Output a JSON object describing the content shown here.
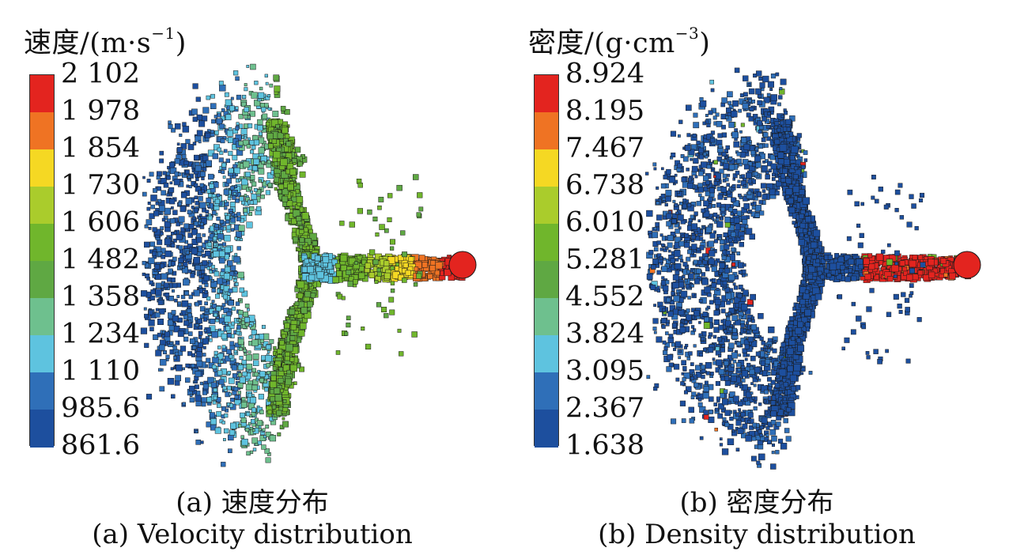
{
  "chart_data": [
    {
      "type": "heatmap",
      "title": "速度/(m·s",
      "title_sup": "−1",
      "title_close": ")",
      "caption_cn": "(a) 速度分布",
      "caption_en": "(a) Velocity distribution",
      "legend_placement": "left",
      "levels": [
        "2 102",
        "1 978",
        "1 854",
        "1 730",
        "1 606",
        "1 482",
        "1 358",
        "1 234",
        "1 110",
        "985.6",
        "861.6"
      ],
      "level_values": [
        2102,
        1978,
        1854,
        1730,
        1606,
        1482,
        1358,
        1234,
        1110,
        985.6,
        861.6
      ],
      "colors": [
        "#e3241f",
        "#ef7323",
        "#f5d823",
        "#aacc2c",
        "#70b62c",
        "#5fa843",
        "#6ec08e",
        "#5ec3df",
        "#2f6fb8",
        "#1d4f9e"
      ]
    },
    {
      "type": "heatmap",
      "title": "密度/(g·cm",
      "title_sup": "−3",
      "title_close": ")",
      "caption_cn": "(b) 密度分布",
      "caption_en": "(b) Density distribution",
      "legend_placement": "left",
      "levels": [
        "8.924",
        "8.195",
        "7.467",
        "6.738",
        "6.010",
        "5.281",
        "4.552",
        "3.824",
        "3.095",
        "2.367",
        "1.638"
      ],
      "level_values": [
        8.924,
        8.195,
        7.467,
        6.738,
        6.01,
        5.281,
        4.552,
        3.824,
        3.095,
        2.367,
        1.638
      ],
      "colors": [
        "#e3241f",
        "#ef7323",
        "#f5d823",
        "#aacc2c",
        "#70b62c",
        "#5fa843",
        "#6ec08e",
        "#5ec3df",
        "#2f6fb8",
        "#1d4f9e"
      ]
    }
  ]
}
